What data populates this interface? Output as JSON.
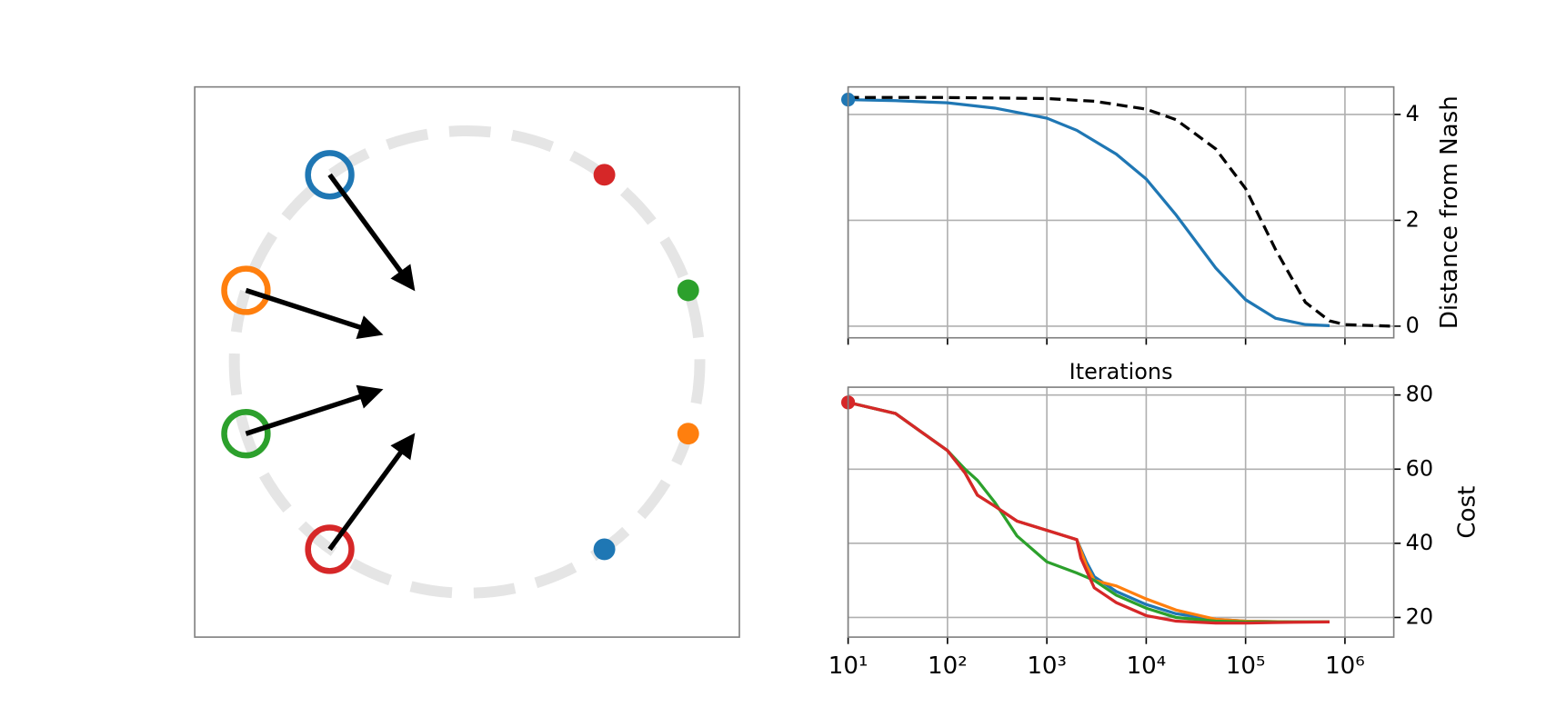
{
  "chart_data": [
    {
      "type": "scatter",
      "xlim": [
        -1.17,
        1.17
      ],
      "ylim": [
        -1.19,
        1.19
      ],
      "series": [
        {
          "color": "#1f77b4",
          "x": [
            -0.59,
            0.59
          ],
          "values": [
            0.81,
            -0.81
          ]
        },
        {
          "color": "#ff7f0e",
          "x": [
            -0.95,
            0.95
          ],
          "values": [
            0.31,
            -0.31
          ]
        },
        {
          "color": "#2ca02c",
          "x": [
            -0.95,
            0.95
          ],
          "values": [
            -0.31,
            0.31
          ]
        },
        {
          "color": "#d62728",
          "x": [
            -0.59,
            0.59
          ],
          "values": [
            -0.81,
            0.81
          ]
        }
      ]
    },
    {
      "type": "line",
      "xlabel": "Iterations",
      "ylabel": "Distance from Nash",
      "xscale": "log",
      "grid": true,
      "yaxis_side": "right",
      "xlim": [
        10,
        3100000
      ],
      "ylim": [
        -0.22,
        4.52
      ],
      "xticks": [
        10,
        100,
        1000,
        10000,
        100000,
        1000000
      ],
      "yticks": [
        0,
        2,
        4
      ],
      "series": [
        {
          "color": "#1f77b4",
          "linestyle": "solid",
          "marker": "start",
          "x": [
            10,
            30,
            100,
            300,
            1000,
            2000,
            5000,
            10000,
            20000,
            50000,
            100000,
            200000,
            400000,
            700000
          ],
          "values": [
            4.28,
            4.26,
            4.22,
            4.12,
            3.93,
            3.7,
            3.25,
            2.78,
            2.1,
            1.1,
            0.5,
            0.15,
            0.03,
            0.01
          ]
        },
        {
          "color": "#000000",
          "linestyle": "dashed",
          "x": [
            10,
            100,
            1000,
            3000,
            10000,
            20000,
            50000,
            100000,
            200000,
            400000,
            700000,
            1000000,
            3000000
          ],
          "values": [
            4.32,
            4.32,
            4.3,
            4.25,
            4.1,
            3.9,
            3.35,
            2.6,
            1.45,
            0.45,
            0.1,
            0.03,
            0.0
          ]
        }
      ]
    },
    {
      "type": "line",
      "ylabel": "Cost",
      "xscale": "log",
      "grid": true,
      "yaxis_side": "right",
      "xlim": [
        10,
        3100000
      ],
      "ylim": [
        14.7,
        82.1
      ],
      "xticks": [
        {
          "value": 10,
          "label": "10¹"
        },
        {
          "value": 100,
          "label": "10²"
        },
        {
          "value": 1000,
          "label": "10³"
        },
        {
          "value": 10000,
          "label": "10⁴"
        },
        {
          "value": 100000,
          "label": "10⁵"
        },
        {
          "value": 1000000,
          "label": "10⁶"
        }
      ],
      "yticks": [
        20,
        40,
        60,
        80
      ],
      "series": [
        {
          "color": "#1f77b4",
          "linestyle": "solid",
          "x": [
            10,
            30,
            100,
            150,
            200,
            300,
            500,
            1000,
            2000,
            2500,
            3000,
            5000,
            10000,
            20000,
            50000,
            100000,
            300000,
            700000
          ],
          "values": [
            78,
            75,
            65,
            59,
            53,
            50,
            46,
            43.5,
            41,
            35,
            31,
            27,
            23.5,
            21,
            19.5,
            19,
            18.8,
            18.8
          ]
        },
        {
          "color": "#ff7f0e",
          "linestyle": "solid",
          "x": [
            10,
            30,
            100,
            150,
            200,
            300,
            500,
            1000,
            2000,
            2500,
            3000,
            5000,
            10000,
            20000,
            50000,
            100000,
            300000,
            700000
          ],
          "values": [
            78,
            75,
            65,
            59,
            53,
            50,
            46,
            43.5,
            41,
            34,
            30,
            28.5,
            25,
            22,
            19.5,
            19,
            18.8,
            18.8
          ]
        },
        {
          "color": "#2ca02c",
          "linestyle": "solid",
          "x": [
            10,
            30,
            100,
            150,
            200,
            300,
            500,
            1000,
            2000,
            3000,
            5000,
            10000,
            20000,
            50000,
            100000,
            300000,
            700000
          ],
          "values": [
            78,
            75,
            65,
            60,
            57,
            51,
            42,
            35,
            32,
            30,
            26,
            22.5,
            20,
            19,
            18.8,
            18.8,
            18.8
          ]
        },
        {
          "color": "#d62728",
          "linestyle": "solid",
          "marker": "start",
          "x": [
            10,
            30,
            100,
            150,
            200,
            300,
            500,
            1000,
            2000,
            2200,
            3000,
            5000,
            10000,
            20000,
            50000,
            100000,
            300000,
            700000
          ],
          "values": [
            78,
            75,
            65,
            59,
            53,
            50,
            46,
            43.5,
            41,
            36,
            28,
            24,
            20.5,
            19,
            18.5,
            18.5,
            18.7,
            18.8
          ]
        }
      ]
    }
  ]
}
